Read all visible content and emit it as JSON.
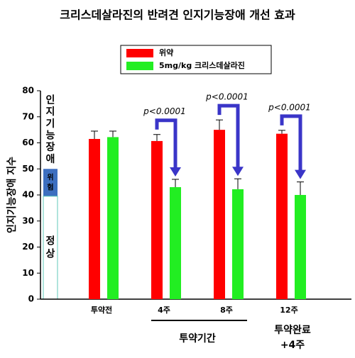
{
  "chart_data": {
    "type": "bar",
    "title": "크리스데살라진의 반려견 인지기능장애 개선 효과",
    "y_label": "인지기능장애 지수",
    "categories": [
      "투약전",
      "4주",
      "8주",
      "12주"
    ],
    "series": [
      {
        "name": "위약",
        "color": "#ff0000",
        "values": [
          61.5,
          60.7,
          65,
          63.5
        ],
        "errors": [
          3,
          2.5,
          3.8,
          1.3
        ]
      },
      {
        "name": "5mg/kg 크리스데살라진",
        "color": "#22ee22",
        "values": [
          62.2,
          43,
          42.2,
          40
        ],
        "errors": [
          2.3,
          3,
          4,
          5
        ]
      }
    ],
    "p_labels": [
      null,
      "p<0.0001",
      "p<0.0001",
      "p<0.0001"
    ],
    "zones": [
      {
        "label": "인지기능장애",
        "from": 50,
        "to": 80,
        "color": "#ffffff",
        "text_color": "#c00000"
      },
      {
        "label": "위험",
        "from": 39.5,
        "to": 50,
        "color": "#3d6fc0",
        "text_color": "#ffffff"
      },
      {
        "label": "정상",
        "from": 0,
        "to": 39.5,
        "color": "#ffffff",
        "text_color": "#000000"
      }
    ],
    "period_label": "투약기간",
    "after_label": [
      "투약완료",
      "+4주"
    ],
    "ylim": [
      0,
      80
    ],
    "yticks": [
      0,
      10,
      20,
      30,
      40,
      50,
      60,
      70,
      80
    ]
  }
}
